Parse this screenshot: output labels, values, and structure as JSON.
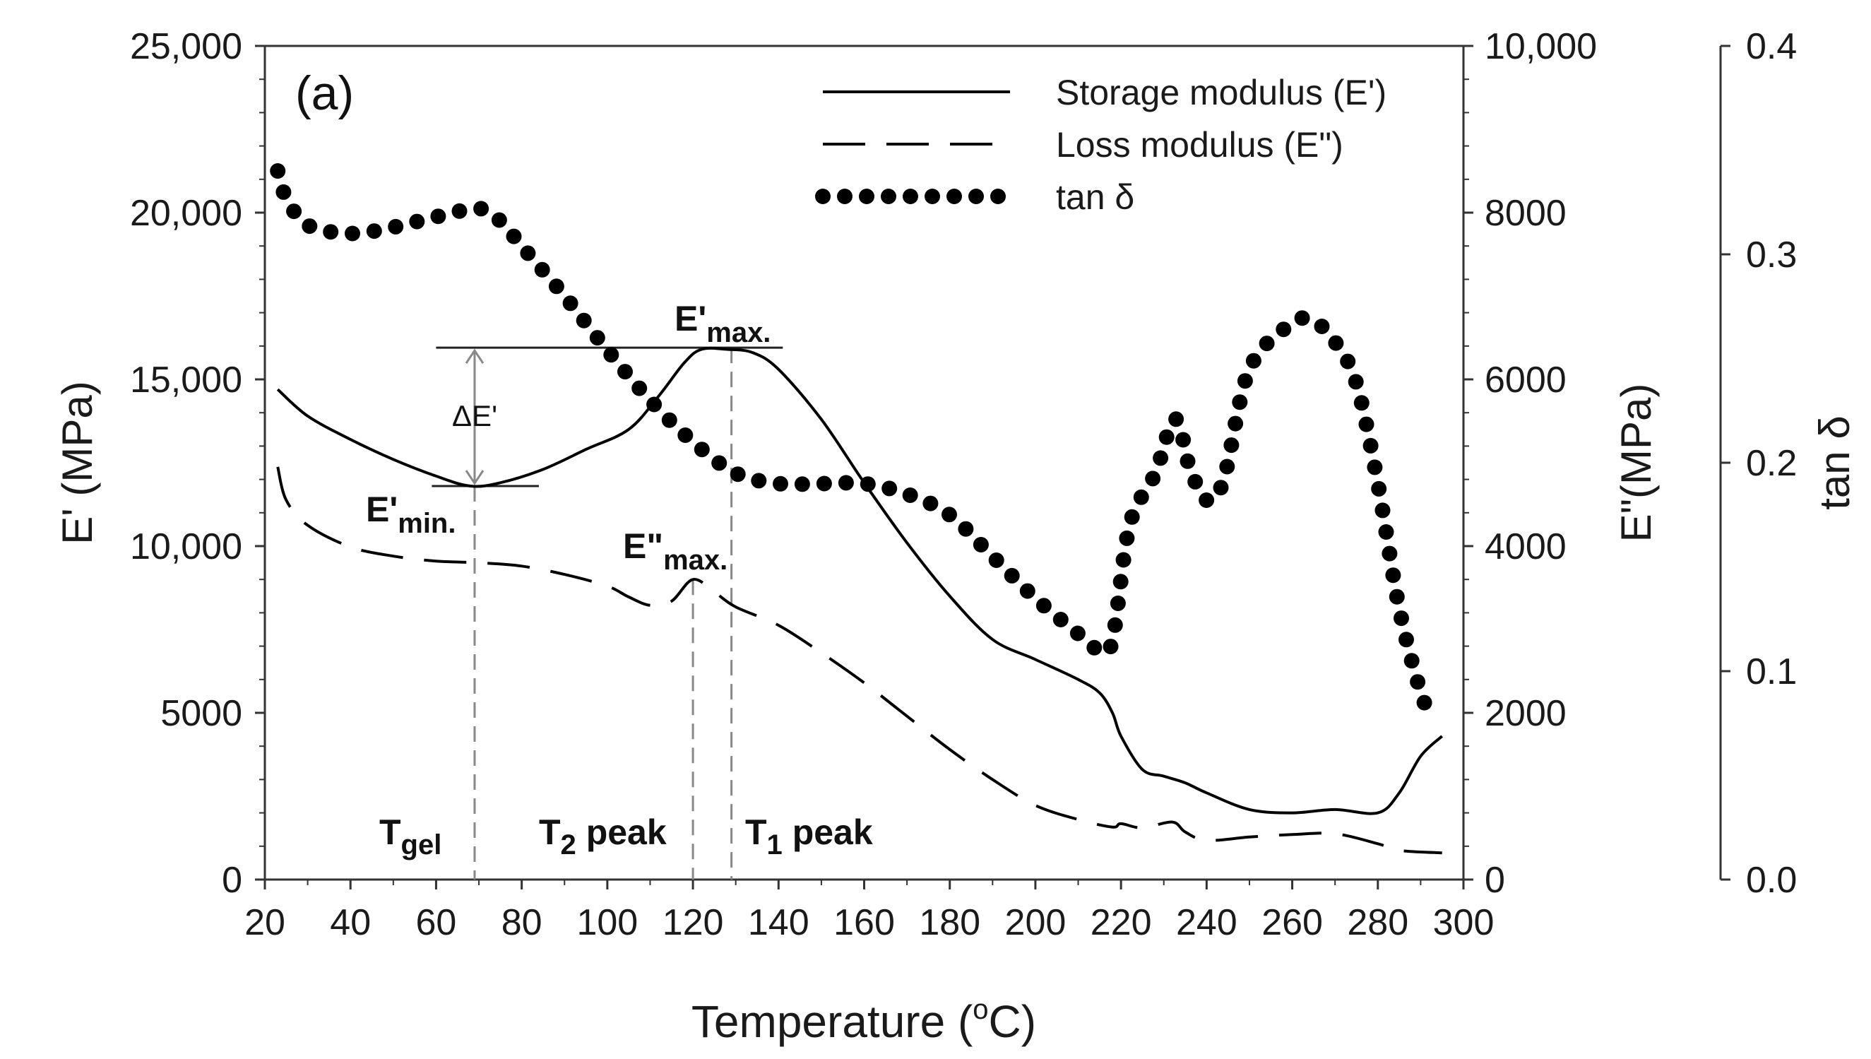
{
  "chart_data": {
    "type": "line",
    "panel_label": "(a)",
    "xlabel_parts": [
      "Temperature (",
      "o",
      "C)"
    ],
    "ylabel_left": "E' (MPa)",
    "ylabel_right": "E\"(MPa)",
    "ylabel_far_right": "tan δ",
    "xlim": [
      20,
      300
    ],
    "x_ticks": [
      20,
      40,
      60,
      80,
      100,
      120,
      140,
      160,
      180,
      200,
      220,
      240,
      260,
      280,
      300
    ],
    "ylim_left": [
      0,
      25000
    ],
    "y_left_ticks": [
      0,
      5000,
      10000,
      15000,
      20000,
      25000
    ],
    "y_left_tick_labels": [
      "0",
      "5000",
      "10,000",
      "15,000",
      "20,000",
      "25,000"
    ],
    "ylim_right": [
      0,
      10000
    ],
    "y_right_ticks": [
      0,
      2000,
      4000,
      6000,
      8000,
      10000
    ],
    "y_right_tick_labels": [
      "0",
      "2000",
      "4000",
      "6000",
      "8000",
      "10,000"
    ],
    "ylim_far_right": [
      0,
      0.4
    ],
    "y_far_ticks": [
      0.0,
      0.1,
      0.2,
      0.3,
      0.4
    ],
    "y_far_tick_labels": [
      "0.0",
      "0.1",
      "0.2",
      "0.3",
      "0.4"
    ],
    "series": [
      {
        "name": "Storage modulus (E')",
        "axis": "left",
        "style": "solid",
        "x": [
          23,
          30,
          40,
          50,
          60,
          68,
          75,
          85,
          95,
          105,
          112,
          118,
          122,
          128,
          134,
          140,
          150,
          160,
          170,
          180,
          190,
          200,
          210,
          215,
          218,
          220,
          225,
          230,
          235,
          240,
          250,
          260,
          270,
          280,
          285,
          290,
          295
        ],
        "values": [
          14700,
          13900,
          13200,
          12600,
          12100,
          11800,
          11900,
          12300,
          12900,
          13500,
          14500,
          15500,
          15900,
          15900,
          15800,
          15300,
          13800,
          11900,
          10100,
          8500,
          7200,
          6600,
          6000,
          5600,
          5000,
          4300,
          3300,
          3100,
          2900,
          2600,
          2100,
          2000,
          2100,
          2000,
          2600,
          3700,
          4300
        ]
      },
      {
        "name": "Loss modulus (E\")",
        "axis": "right",
        "style": "dashed",
        "x": [
          23,
          25,
          30,
          40,
          50,
          60,
          70,
          80,
          90,
          100,
          105,
          110,
          115,
          120,
          125,
          130,
          140,
          150,
          160,
          170,
          180,
          190,
          200,
          210,
          218,
          220,
          225,
          232,
          235,
          240,
          250,
          260,
          270,
          280,
          285,
          295
        ],
        "values": [
          4950,
          4550,
          4250,
          3990,
          3880,
          3820,
          3800,
          3760,
          3660,
          3520,
          3390,
          3290,
          3340,
          3600,
          3450,
          3270,
          3050,
          2720,
          2360,
          1960,
          1560,
          1200,
          890,
          720,
          630,
          670,
          620,
          690,
          570,
          470,
          510,
          540,
          550,
          430,
          350,
          320
        ]
      },
      {
        "name": "tan δ",
        "axis": "far_right",
        "style": "dotted",
        "x": [
          23,
          25,
          30,
          40,
          50,
          60,
          70,
          75,
          80,
          90,
          100,
          110,
          120,
          130,
          140,
          150,
          160,
          170,
          180,
          190,
          200,
          210,
          215,
          218,
          222,
          228,
          232,
          234,
          236,
          240,
          244,
          250,
          260,
          265,
          270,
          275,
          280,
          285,
          290,
          293
        ],
        "values": [
          0.34,
          0.327,
          0.314,
          0.31,
          0.313,
          0.318,
          0.322,
          0.316,
          0.304,
          0.28,
          0.254,
          0.23,
          0.21,
          0.195,
          0.19,
          0.19,
          0.19,
          0.185,
          0.175,
          0.155,
          0.135,
          0.118,
          0.11,
          0.115,
          0.17,
          0.195,
          0.22,
          0.215,
          0.198,
          0.182,
          0.192,
          0.245,
          0.267,
          0.268,
          0.258,
          0.238,
          0.19,
          0.13,
          0.09,
          0.076
        ]
      }
    ],
    "legend": {
      "placement": "top-right",
      "entries": [
        "Storage modulus (E')",
        "Loss modulus (E\")",
        "tan δ"
      ]
    },
    "annotations": {
      "delta_e_label": "ΔE'",
      "e_min": {
        "main": "E'",
        "sub": "min.",
        "x": 69,
        "value": 11800
      },
      "e_max": {
        "main": "E'",
        "sub": "max.",
        "x_from": 60,
        "x_to": 141,
        "value": 15950
      },
      "e2_max": {
        "main": "E\"",
        "sub": "max."
      },
      "t_gel": {
        "main": "T",
        "sub": "gel",
        "x": 69
      },
      "t2_peak": {
        "main": "T",
        "sub": "2",
        "suffix": " peak",
        "x": 120
      },
      "t1_peak": {
        "main": "T",
        "sub": "1",
        "suffix": " peak",
        "x": 129
      }
    }
  }
}
